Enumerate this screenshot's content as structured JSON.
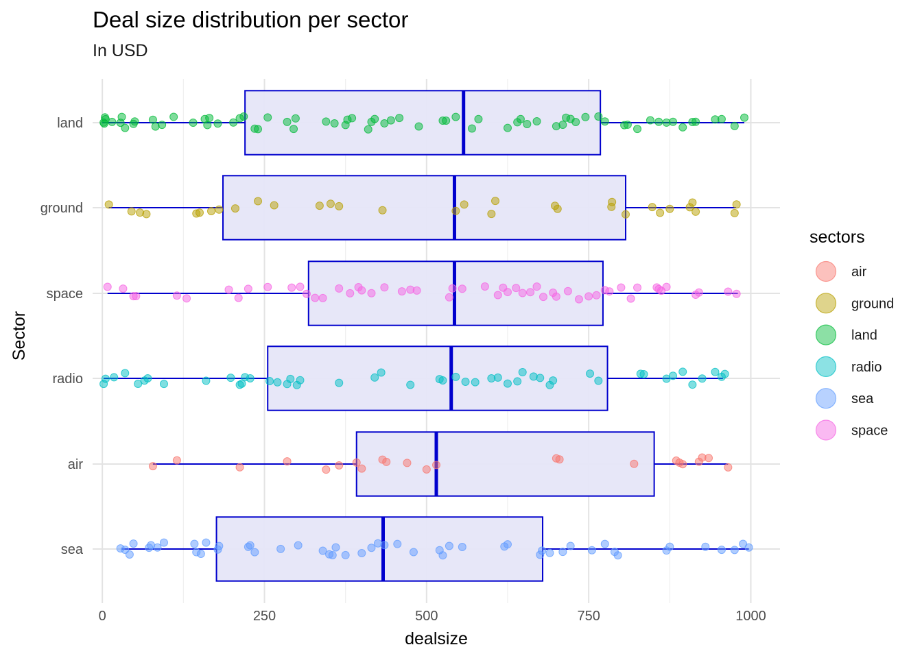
{
  "chart_data": {
    "type": "boxplot",
    "orientation": "horizontal",
    "title": "Deal size distribution per sector",
    "subtitle": "In USD",
    "xlabel": "dealsize",
    "ylabel": "Sector",
    "xlim": [
      -15,
      1045
    ],
    "x_ticks": [
      0,
      250,
      500,
      750,
      1000
    ],
    "x_tick_labels": [
      "0",
      "250",
      "500",
      "750",
      "1000"
    ],
    "grid": true,
    "legend": {
      "title": "sectors",
      "position": "right",
      "entries": [
        {
          "label": "air",
          "color": "#F8766D"
        },
        {
          "label": "ground",
          "color": "#B79F00"
        },
        {
          "label": "land",
          "color": "#00BA38"
        },
        {
          "label": "radio",
          "color": "#00BFC4"
        },
        {
          "label": "sea",
          "color": "#619CFF"
        },
        {
          "label": "space",
          "color": "#F564E3"
        }
      ]
    },
    "box_color": "#0000CD",
    "box_fill": "#E6E6F8",
    "categories": [
      "land",
      "ground",
      "space",
      "radio",
      "air",
      "sea"
    ],
    "boxes": [
      {
        "sector": "land",
        "whisker_low": 0,
        "q1": 220,
        "median": 557,
        "q3": 768,
        "whisker_high": 990
      },
      {
        "sector": "ground",
        "whisker_low": 10,
        "q1": 186,
        "median": 543,
        "q3": 807,
        "whisker_high": 977
      },
      {
        "sector": "space",
        "whisker_low": 8,
        "q1": 318,
        "median": 543,
        "q3": 772,
        "whisker_high": 980
      },
      {
        "sector": "radio",
        "whisker_low": 2,
        "q1": 255,
        "median": 538,
        "q3": 779,
        "whisker_high": 957
      },
      {
        "sector": "air",
        "whisker_low": 78,
        "q1": 392,
        "median": 515,
        "q3": 851,
        "whisker_high": 965
      },
      {
        "sector": "sea",
        "whisker_low": 30,
        "q1": 176,
        "median": 433,
        "q3": 679,
        "whisker_high": 997
      }
    ],
    "points": [
      {
        "sector": "land",
        "color": "#00BA38",
        "values": [
          2,
          3,
          4,
          5,
          15,
          28,
          30,
          35,
          48,
          50,
          78,
          82,
          92,
          110,
          140,
          158,
          162,
          165,
          178,
          202,
          212,
          218,
          235,
          240,
          255,
          285,
          295,
          298,
          345,
          358,
          375,
          378,
          385,
          410,
          415,
          420,
          435,
          445,
          458,
          488,
          525,
          530,
          545,
          570,
          580,
          625,
          640,
          645,
          655,
          670,
          700,
          710,
          715,
          722,
          730,
          745,
          765,
          775,
          805,
          810,
          825,
          845,
          858,
          870,
          880,
          895,
          910,
          915,
          945,
          955,
          975,
          990
        ]
      },
      {
        "sector": "ground",
        "color": "#B79F00",
        "values": [
          10,
          45,
          58,
          68,
          145,
          150,
          168,
          180,
          205,
          240,
          265,
          335,
          352,
          365,
          432,
          545,
          558,
          600,
          606,
          698,
          702,
          785,
          786,
          807,
          848,
          860,
          875,
          906,
          910,
          915,
          975,
          978
        ]
      },
      {
        "sector": "space",
        "color": "#F564E3",
        "values": [
          8,
          32,
          48,
          52,
          115,
          130,
          195,
          210,
          225,
          255,
          292,
          305,
          315,
          328,
          340,
          365,
          382,
          395,
          400,
          415,
          435,
          462,
          475,
          485,
          535,
          540,
          555,
          590,
          610,
          618,
          625,
          638,
          648,
          660,
          670,
          680,
          695,
          700,
          718,
          735,
          750,
          762,
          775,
          782,
          800,
          815,
          825,
          855,
          858,
          862,
          870,
          915,
          920,
          965,
          978
        ]
      },
      {
        "sector": "radio",
        "color": "#00BFC4",
        "values": [
          2,
          5,
          18,
          35,
          55,
          65,
          70,
          95,
          160,
          198,
          212,
          215,
          220,
          228,
          258,
          270,
          285,
          290,
          300,
          305,
          365,
          420,
          430,
          475,
          520,
          525,
          545,
          560,
          575,
          600,
          610,
          625,
          640,
          648,
          665,
          675,
          690,
          695,
          752,
          765,
          830,
          835,
          870,
          880,
          895,
          910,
          925,
          945,
          955,
          960
        ]
      },
      {
        "sector": "air",
        "color": "#F8766D",
        "values": [
          78,
          115,
          212,
          285,
          345,
          365,
          392,
          400,
          432,
          438,
          470,
          500,
          515,
          700,
          705,
          820,
          885,
          890,
          895,
          920,
          925,
          935,
          965
        ]
      },
      {
        "sector": "sea",
        "color": "#619CFF",
        "values": [
          28,
          35,
          42,
          48,
          72,
          75,
          85,
          95,
          142,
          145,
          152,
          160,
          178,
          180,
          225,
          228,
          235,
          275,
          302,
          340,
          350,
          355,
          360,
          375,
          400,
          415,
          425,
          435,
          455,
          480,
          520,
          525,
          535,
          555,
          620,
          625,
          675,
          678,
          690,
          710,
          722,
          755,
          775,
          790,
          795,
          870,
          875,
          930,
          955,
          975,
          988,
          997
        ]
      }
    ]
  }
}
